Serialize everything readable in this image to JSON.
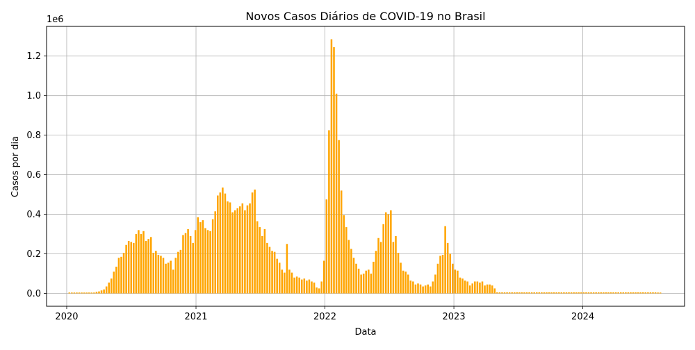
{
  "chart_data": {
    "type": "bar",
    "title": "Novos Casos Diários de COVID-19 no Brasil",
    "xlabel": "Data",
    "ylabel": "Casos por dia",
    "y_scale_label": "1e6",
    "x_tick_labels": [
      "2020",
      "2021",
      "2022",
      "2023",
      "2024"
    ],
    "y_tick_labels": [
      "0.0",
      "0.2",
      "0.4",
      "0.6",
      "0.8",
      "1.0",
      "1.2"
    ],
    "y_ticks": [
      0,
      200000,
      400000,
      600000,
      800000,
      1000000,
      1200000
    ],
    "ylim": [
      -65000,
      1350000
    ],
    "xlim": [
      "2019-11-05",
      "2024-10-15"
    ],
    "grid": true,
    "bar_color": "#ffa500",
    "frequency": "weekly",
    "week_starts": [
      "2020-01-05",
      "2020-01-12",
      "2020-01-19",
      "2020-01-26",
      "2020-02-02",
      "2020-02-09",
      "2020-02-16",
      "2020-02-23",
      "2020-03-01",
      "2020-03-08",
      "2020-03-15",
      "2020-03-22",
      "2020-03-29",
      "2020-04-05",
      "2020-04-12",
      "2020-04-19",
      "2020-04-26",
      "2020-05-03",
      "2020-05-10",
      "2020-05-17",
      "2020-05-24",
      "2020-05-31",
      "2020-06-07",
      "2020-06-14",
      "2020-06-21",
      "2020-06-28",
      "2020-07-05",
      "2020-07-12",
      "2020-07-19",
      "2020-07-26",
      "2020-08-02",
      "2020-08-09",
      "2020-08-16",
      "2020-08-23",
      "2020-08-30",
      "2020-09-06",
      "2020-09-13",
      "2020-09-20",
      "2020-09-27",
      "2020-10-04",
      "2020-10-11",
      "2020-10-18",
      "2020-10-25",
      "2020-11-01",
      "2020-11-08",
      "2020-11-15",
      "2020-11-22",
      "2020-11-29",
      "2020-12-06",
      "2020-12-13",
      "2020-12-20",
      "2020-12-27",
      "2021-01-03",
      "2021-01-10",
      "2021-01-17",
      "2021-01-24",
      "2021-01-31",
      "2021-02-07",
      "2021-02-14",
      "2021-02-21",
      "2021-02-28",
      "2021-03-07",
      "2021-03-14",
      "2021-03-21",
      "2021-03-28",
      "2021-04-04",
      "2021-04-11",
      "2021-04-18",
      "2021-04-25",
      "2021-05-02",
      "2021-05-09",
      "2021-05-16",
      "2021-05-23",
      "2021-05-30",
      "2021-06-06",
      "2021-06-13",
      "2021-06-20",
      "2021-06-27",
      "2021-07-04",
      "2021-07-11",
      "2021-07-18",
      "2021-07-25",
      "2021-08-01",
      "2021-08-08",
      "2021-08-15",
      "2021-08-22",
      "2021-08-29",
      "2021-09-05",
      "2021-09-12",
      "2021-09-19",
      "2021-09-26",
      "2021-10-03",
      "2021-10-10",
      "2021-10-17",
      "2021-10-24",
      "2021-10-31",
      "2021-11-07",
      "2021-11-14",
      "2021-11-21",
      "2021-11-28",
      "2021-12-05",
      "2021-12-12",
      "2021-12-19",
      "2021-12-26",
      "2022-01-02",
      "2022-01-09",
      "2022-01-16",
      "2022-01-23",
      "2022-01-30",
      "2022-02-06",
      "2022-02-13",
      "2022-02-20",
      "2022-02-27",
      "2022-03-06",
      "2022-03-13",
      "2022-03-20",
      "2022-03-27",
      "2022-04-03",
      "2022-04-10",
      "2022-04-17",
      "2022-04-24",
      "2022-05-01",
      "2022-05-08",
      "2022-05-15",
      "2022-05-22",
      "2022-05-29",
      "2022-06-05",
      "2022-06-12",
      "2022-06-19",
      "2022-06-26",
      "2022-07-03",
      "2022-07-10",
      "2022-07-17",
      "2022-07-24",
      "2022-07-31",
      "2022-08-07",
      "2022-08-14",
      "2022-08-21",
      "2022-08-28",
      "2022-09-04",
      "2022-09-11",
      "2022-09-18",
      "2022-09-25",
      "2022-10-02",
      "2022-10-09",
      "2022-10-16",
      "2022-10-23",
      "2022-10-30",
      "2022-11-06",
      "2022-11-13",
      "2022-11-20",
      "2022-11-27",
      "2022-12-04",
      "2022-12-11",
      "2022-12-18",
      "2022-12-25",
      "2023-01-01",
      "2023-01-08",
      "2023-01-15",
      "2023-01-22",
      "2023-01-29",
      "2023-02-05",
      "2023-02-12",
      "2023-02-19",
      "2023-02-26",
      "2023-03-05",
      "2023-03-12",
      "2023-03-19",
      "2023-03-26",
      "2023-04-02",
      "2023-04-09",
      "2023-04-16",
      "2023-04-23",
      "2023-04-30",
      "2023-05-07",
      "2023-05-14",
      "2023-05-21",
      "2023-05-28",
      "2023-06-04",
      "2023-06-11",
      "2023-06-18",
      "2023-06-25",
      "2023-07-02",
      "2023-07-09",
      "2023-07-16",
      "2023-07-23",
      "2023-07-30",
      "2023-08-06",
      "2023-08-13",
      "2023-08-20",
      "2023-08-27",
      "2023-09-03",
      "2023-09-10",
      "2023-09-17",
      "2023-09-24",
      "2023-10-01",
      "2023-10-08",
      "2023-10-15",
      "2023-10-22",
      "2023-10-29",
      "2023-11-05",
      "2023-11-12",
      "2023-11-19",
      "2023-11-26",
      "2023-12-03",
      "2023-12-10",
      "2023-12-17",
      "2023-12-24",
      "2023-12-31",
      "2024-01-07",
      "2024-01-14",
      "2024-01-21",
      "2024-01-28",
      "2024-02-04",
      "2024-02-11",
      "2024-02-18",
      "2024-02-25",
      "2024-03-03",
      "2024-03-10",
      "2024-03-17",
      "2024-03-24",
      "2024-03-31",
      "2024-04-07",
      "2024-04-14",
      "2024-04-21",
      "2024-04-28",
      "2024-05-05",
      "2024-05-12",
      "2024-05-19",
      "2024-05-26",
      "2024-06-02",
      "2024-06-09",
      "2024-06-16",
      "2024-06-23",
      "2024-06-30",
      "2024-07-07",
      "2024-07-14",
      "2024-07-21",
      "2024-07-28",
      "2024-08-04"
    ],
    "values": [
      0,
      0,
      0,
      0,
      0,
      0,
      0,
      0,
      0,
      1000,
      3000,
      8000,
      10000,
      15000,
      20000,
      35000,
      55000,
      75000,
      110000,
      135000,
      180000,
      185000,
      205000,
      245000,
      265000,
      260000,
      255000,
      300000,
      320000,
      300000,
      315000,
      265000,
      275000,
      285000,
      205000,
      215000,
      195000,
      190000,
      180000,
      150000,
      155000,
      165000,
      120000,
      180000,
      210000,
      220000,
      295000,
      305000,
      325000,
      290000,
      255000,
      320000,
      385000,
      360000,
      370000,
      330000,
      320000,
      315000,
      375000,
      415000,
      495000,
      510000,
      535000,
      505000,
      465000,
      460000,
      410000,
      420000,
      430000,
      440000,
      455000,
      420000,
      445000,
      455000,
      510000,
      525000,
      365000,
      335000,
      290000,
      325000,
      255000,
      235000,
      215000,
      210000,
      175000,
      155000,
      120000,
      105000,
      250000,
      120000,
      105000,
      80000,
      85000,
      80000,
      70000,
      75000,
      65000,
      70000,
      60000,
      55000,
      30000,
      25000,
      60000,
      165000,
      475000,
      825000,
      1285000,
      1245000,
      1010000,
      775000,
      520000,
      395000,
      335000,
      270000,
      225000,
      180000,
      150000,
      125000,
      95000,
      100000,
      115000,
      120000,
      100000,
      160000,
      215000,
      280000,
      260000,
      350000,
      410000,
      400000,
      420000,
      260000,
      290000,
      205000,
      155000,
      115000,
      110000,
      95000,
      65000,
      60000,
      45000,
      50000,
      45000,
      35000,
      40000,
      45000,
      35000,
      60000,
      95000,
      150000,
      190000,
      195000,
      340000,
      255000,
      200000,
      150000,
      120000,
      115000,
      80000,
      75000,
      65000,
      60000,
      40000,
      50000,
      60000,
      60000,
      55000,
      60000,
      40000,
      45000,
      45000,
      40000,
      25000,
      5000,
      5000,
      5000,
      5000,
      5000,
      5000,
      5000,
      5000,
      5000,
      5000,
      5000,
      5000,
      5000,
      5000,
      5000,
      5000,
      5000,
      5000,
      5000,
      5000,
      5000,
      5000,
      5000,
      5000,
      5000,
      5000,
      5000,
      5000,
      5000,
      5000,
      5000,
      5000,
      5000,
      5000,
      5000,
      5000,
      5000,
      5000,
      5000,
      5000,
      5000,
      5000,
      5000,
      5000,
      5000,
      5000,
      5000,
      5000,
      5000,
      5000,
      5000,
      5000,
      5000,
      5000,
      5000,
      5000,
      5000,
      5000,
      5000,
      5000,
      5000,
      5000,
      5000,
      5000,
      5000
    ]
  }
}
